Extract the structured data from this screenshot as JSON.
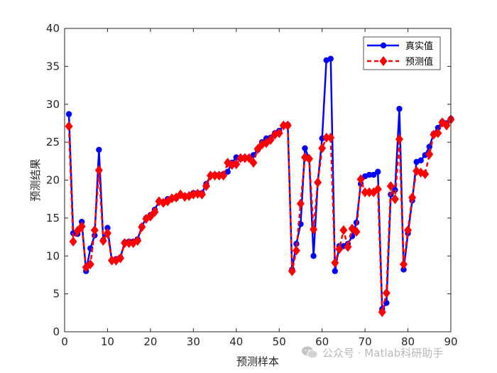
{
  "chart_data": {
    "type": "line",
    "xlabel": "预测样本",
    "ylabel": "预测结果",
    "xlim": [
      0,
      90
    ],
    "ylim": [
      0,
      40
    ],
    "xticks": [
      0,
      10,
      20,
      30,
      40,
      50,
      60,
      70,
      80,
      90
    ],
    "yticks": [
      0,
      5,
      10,
      15,
      20,
      25,
      30,
      35,
      40
    ],
    "grid": false,
    "legend_position": "top-right",
    "series": [
      {
        "name": "真实值",
        "color": "#0000ff",
        "line_style": "solid",
        "marker": "circle",
        "values": [
          28.7,
          13.0,
          12.9,
          14.5,
          8.0,
          11.0,
          12.7,
          24.0,
          12.1,
          13.7,
          9.4,
          9.6,
          9.8,
          11.8,
          11.9,
          11.9,
          12.2,
          13.9,
          15.0,
          15.4,
          16.1,
          17.2,
          17.0,
          17.5,
          17.6,
          17.6,
          18.0,
          17.9,
          17.9,
          18.3,
          18.3,
          18.3,
          19.5,
          20.6,
          20.7,
          20.7,
          20.8,
          21.1,
          22.3,
          23.0,
          22.8,
          23.0,
          22.9,
          23.3,
          24.0,
          25.0,
          25.5,
          25.6,
          26.2,
          26.5,
          27.2,
          27.3,
          8.2,
          11.6,
          14.2,
          24.2,
          22.8,
          10.0,
          19.7,
          25.5,
          35.8,
          36.0,
          8.0,
          11.3,
          11.3,
          11.6,
          12.6,
          14.4,
          19.5,
          20.5,
          20.7,
          20.7,
          21.1,
          3.0,
          3.8,
          18.1,
          18.7,
          29.4,
          8.2,
          13.0,
          17.3,
          22.4,
          22.6,
          23.3,
          24.4,
          26.1,
          26.9,
          27.7,
          27.5,
          28.1
        ]
      },
      {
        "name": "预测值",
        "color": "#ff0000",
        "line_style": "dashed",
        "marker": "diamond",
        "values": [
          27.1,
          11.9,
          13.3,
          13.9,
          8.5,
          8.9,
          13.4,
          21.3,
          12.0,
          13.0,
          9.4,
          9.4,
          9.7,
          11.7,
          11.7,
          11.7,
          12.0,
          13.8,
          14.9,
          15.2,
          15.8,
          17.2,
          17.0,
          17.2,
          17.6,
          17.7,
          18.1,
          17.8,
          17.9,
          18.1,
          18.2,
          18.1,
          19.2,
          20.6,
          20.6,
          20.6,
          20.6,
          22.3,
          22.0,
          22.1,
          22.9,
          22.9,
          22.9,
          22.3,
          24.1,
          24.7,
          24.9,
          25.3,
          26.0,
          26.2,
          27.2,
          27.2,
          8.0,
          10.7,
          16.9,
          23.0,
          22.8,
          13.5,
          19.7,
          24.2,
          25.6,
          25.6,
          9.1,
          10.9,
          13.4,
          11.2,
          13.6,
          13.2,
          20.1,
          18.4,
          18.4,
          18.4,
          18.8,
          2.6,
          5.1,
          19.2,
          17.5,
          25.4,
          8.9,
          13.4,
          17.7,
          21.2,
          21.0,
          20.8,
          23.4,
          26.0,
          26.2,
          27.6,
          27.2,
          28.0
        ]
      }
    ]
  },
  "watermark": {
    "text": "公众号 · Matlab科研助手"
  }
}
